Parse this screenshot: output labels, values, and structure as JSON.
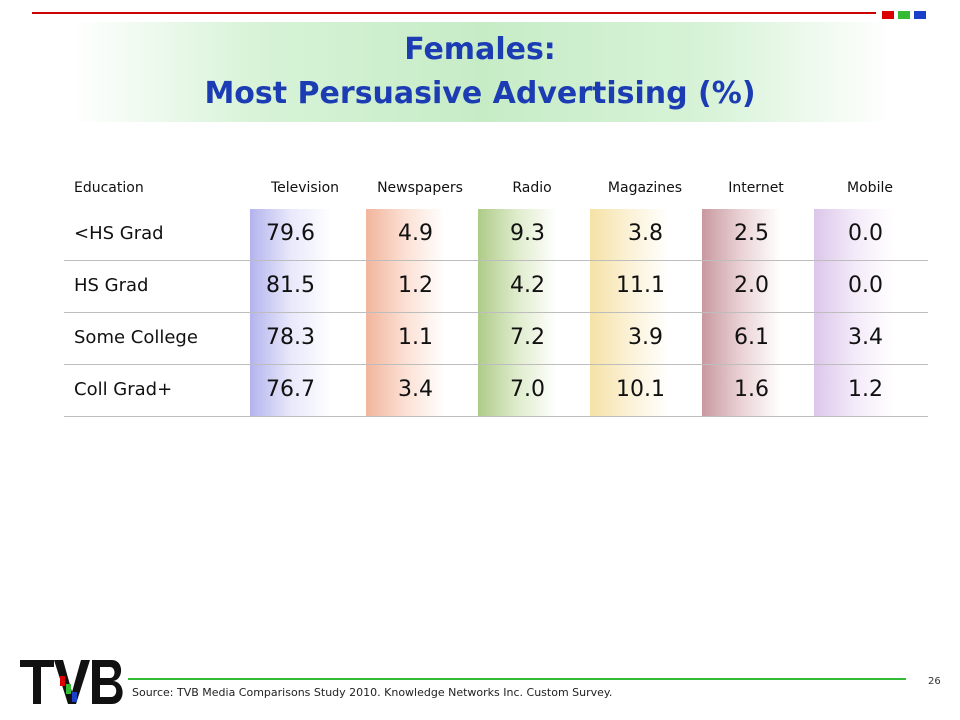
{
  "title": {
    "line1": "Females:",
    "line2": "Most Persuasive Advertising (%)"
  },
  "table": {
    "row_header": "Education",
    "columns": [
      "Television",
      "Newspapers",
      "Radio",
      "Magazines",
      "Internet",
      "Mobile"
    ],
    "rows": [
      {
        "label": "<HS Grad",
        "values": [
          "79.6",
          "4.9",
          "9.3",
          "3.8",
          "2.5",
          "0.0"
        ]
      },
      {
        "label": "HS Grad",
        "values": [
          "81.5",
          "1.2",
          "4.2",
          "11.1",
          "2.0",
          "0.0"
        ]
      },
      {
        "label": "Some College",
        "values": [
          "78.3",
          "1.1",
          "7.2",
          "3.9",
          "6.1",
          "3.4"
        ]
      },
      {
        "label": "Coll Grad+",
        "values": [
          "76.7",
          "3.4",
          "7.0",
          "10.1",
          "1.6",
          "1.2"
        ]
      }
    ]
  },
  "footer": {
    "source": "Source: TVB Media Comparisons Study 2010.  Knowledge Networks Inc. Custom Survey.",
    "page_number": "26",
    "logo_text": "TVB"
  },
  "colors": {
    "title": "#1c3cb4",
    "top_rule": "#cc0000",
    "bottom_rule": "#33bb33",
    "squares": [
      "#dd0000",
      "#33bb33",
      "#1a3fc8"
    ]
  }
}
